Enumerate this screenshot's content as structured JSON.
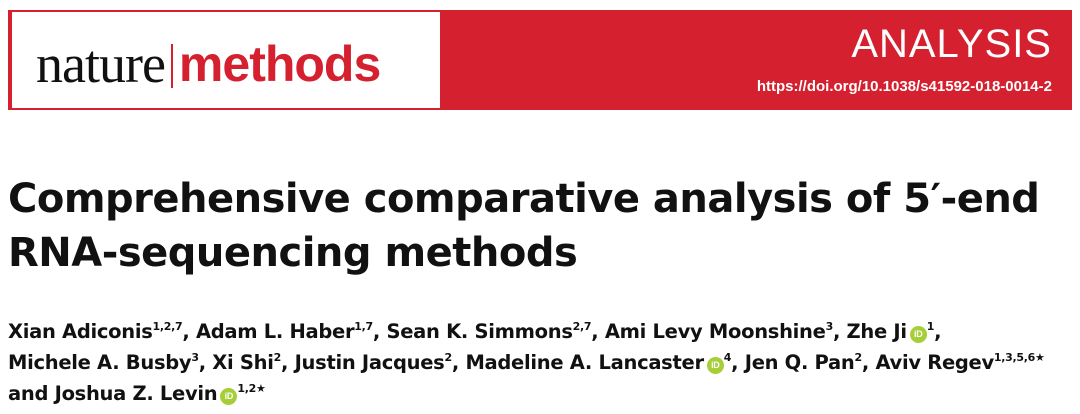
{
  "journal": {
    "name_part1": "nature",
    "name_part2": "methods",
    "brand_red": "#d4202f",
    "section": "ANALYSIS",
    "doi": "https://doi.org/10.1038/s41592-018-0014-2"
  },
  "article": {
    "title": "Comprehensive comparative analysis of 5′-end RNA-sequencing methods"
  },
  "authors": [
    {
      "name": "Xian Adiconis",
      "affil": "1,2,7",
      "orcid": false
    },
    {
      "name": "Adam L. Haber",
      "affil": "1,7",
      "orcid": false
    },
    {
      "name": "Sean K. Simmons",
      "affil": "2,7",
      "orcid": false
    },
    {
      "name": "Ami Levy Moonshine",
      "affil": "3",
      "orcid": false
    },
    {
      "name": "Zhe Ji",
      "affil": "1",
      "orcid": true
    },
    {
      "name": "Michele A. Busby",
      "affil": "3",
      "orcid": false
    },
    {
      "name": "Xi Shi",
      "affil": "2",
      "orcid": false
    },
    {
      "name": "Justin Jacques",
      "affil": "2",
      "orcid": false
    },
    {
      "name": "Madeline A. Lancaster",
      "affil": "4",
      "orcid": true
    },
    {
      "name": "Jen Q. Pan",
      "affil": "2",
      "orcid": false
    },
    {
      "name": "Aviv Regev",
      "affil": "1,3,5,6★",
      "orcid": false
    },
    {
      "name": "Joshua Z. Levin",
      "affil": "1,2★",
      "orcid": true
    }
  ],
  "author_conjunction": "and",
  "orcid_icon_label": "iD",
  "orcid_color": "#a6ce39"
}
